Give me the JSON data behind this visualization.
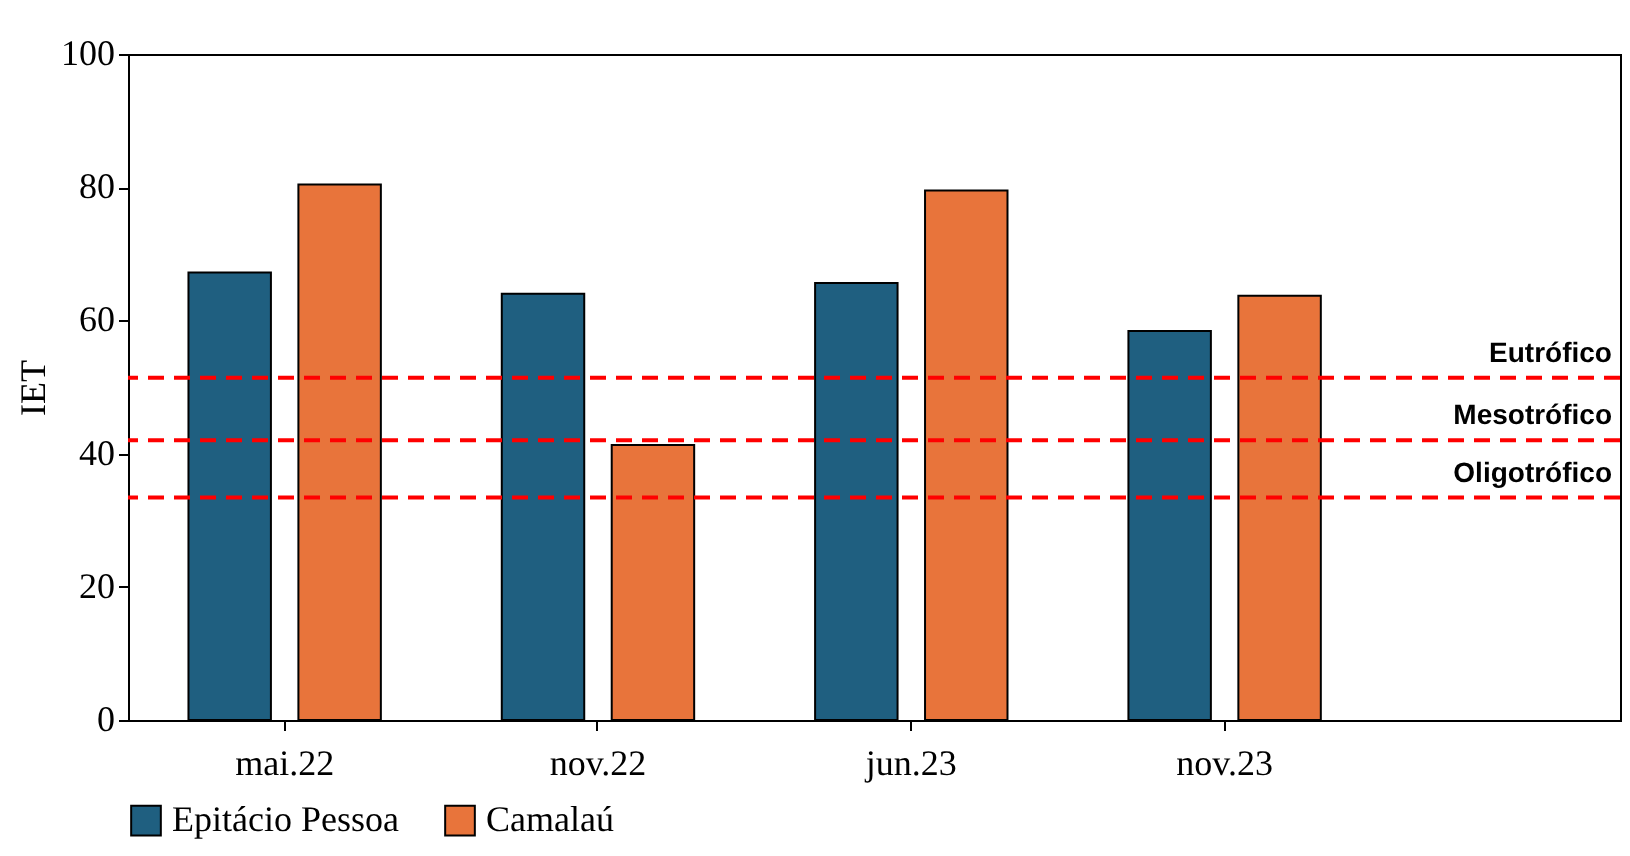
{
  "chart_data": {
    "type": "bar",
    "ylabel": "IET",
    "categories": [
      "mai.22",
      "nov.22",
      "jun.23",
      "nov.23"
    ],
    "series": [
      {
        "name": "Epitácio Pessoa",
        "color": "#1f5f80",
        "values": [
          67.2,
          64,
          65.6,
          58.4
        ]
      },
      {
        "name": "Camalaú",
        "color": "#e8743b",
        "values": [
          80.4,
          41.3,
          79.5,
          63.7
        ]
      }
    ],
    "ylim": [
      0,
      100
    ],
    "yticks": [
      0,
      20,
      40,
      60,
      80,
      100
    ],
    "grid": false,
    "legend": "bottom",
    "ref_lines": [
      {
        "axis": "y",
        "value": 51.4,
        "label": "Eutrófico",
        "color": "#ff0000",
        "line_style": "dashed"
      },
      {
        "axis": "y",
        "value": 42,
        "label": "Mesotrófico",
        "color": "#ff0000",
        "line_style": "dashed"
      },
      {
        "axis": "y",
        "value": 33.4,
        "label": "Oligotrófico",
        "color": "#ff0000",
        "line_style": "dashed"
      }
    ]
  }
}
